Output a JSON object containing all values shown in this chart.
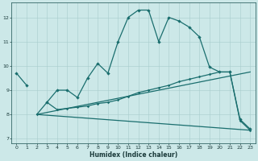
{
  "xlabel": "Humidex (Indice chaleur)",
  "bg_color": "#cce8e8",
  "line_color": "#1a6e6e",
  "xlim": [
    -0.5,
    23.5
  ],
  "ylim": [
    6.8,
    12.6
  ],
  "yticks": [
    7,
    8,
    9,
    10,
    11,
    12
  ],
  "xticks": [
    0,
    1,
    2,
    3,
    4,
    5,
    6,
    7,
    8,
    9,
    10,
    11,
    12,
    13,
    14,
    15,
    16,
    17,
    18,
    19,
    20,
    21,
    22,
    23
  ],
  "series1_x": [
    0,
    1,
    3,
    4,
    5,
    6,
    7,
    8,
    9,
    10,
    11,
    12,
    13,
    14,
    15,
    16,
    17,
    18,
    19,
    20,
    21,
    22,
    23
  ],
  "series1_y": [
    9.7,
    9.2,
    8.5,
    9.0,
    9.0,
    8.7,
    9.5,
    10.1,
    9.7,
    11.0,
    12.0,
    12.3,
    12.3,
    11.0,
    12.0,
    11.85,
    11.6,
    11.2,
    9.95,
    9.75,
    9.75,
    7.8,
    7.4
  ],
  "series2_x": [
    2,
    3,
    4,
    5,
    6,
    7,
    8,
    9,
    10,
    11,
    12,
    13,
    14,
    15,
    16,
    17,
    18,
    19,
    20,
    21,
    22,
    23
  ],
  "series2_y": [
    8.0,
    8.5,
    8.2,
    8.25,
    8.3,
    8.35,
    8.45,
    8.5,
    8.6,
    8.75,
    8.9,
    9.0,
    9.1,
    9.2,
    9.35,
    9.45,
    9.55,
    9.65,
    9.75,
    9.75,
    7.75,
    7.35
  ],
  "series3_x": [
    2,
    23
  ],
  "series3_y": [
    8.0,
    7.35
  ],
  "series4_x": [
    2,
    23
  ],
  "series4_y": [
    8.0,
    9.75
  ]
}
